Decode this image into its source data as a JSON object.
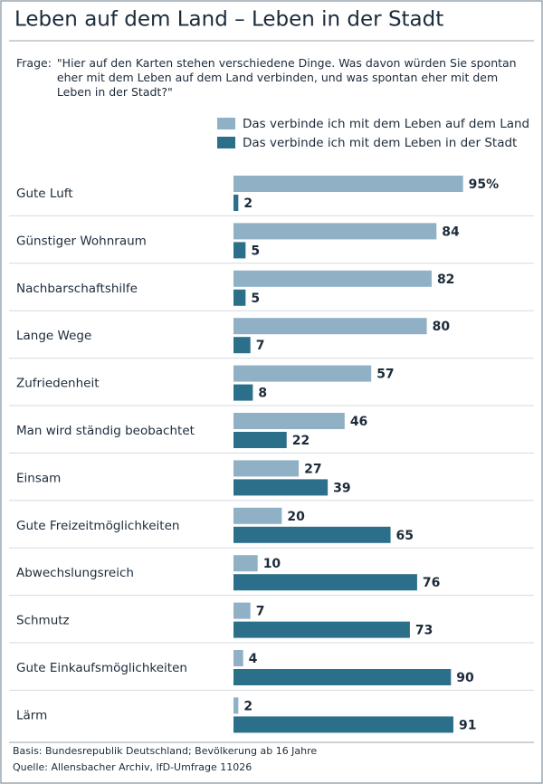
{
  "chart_data": {
    "type": "bar",
    "orientation": "horizontal",
    "title": "Leben auf dem Land – Leben in der Stadt",
    "question": {
      "label": "Frage:",
      "text": "\"Hier auf den Karten stehen verschiedene Dinge. Was davon würden Sie spontan eher mit dem Leben auf dem Land verbinden, und was spontan eher mit dem Leben in der Stadt?\""
    },
    "categories": [
      "Gute Luft",
      "Günstiger Wohnraum",
      "Nachbarschaftshilfe",
      "Lange Wege",
      "Zufriedenheit",
      "Man wird ständig beobachtet",
      "Einsam",
      "Gute Freizeitmöglichkeiten",
      "Abwechslungsreich",
      "Schmutz",
      "Gute Einkaufsmöglichkeiten",
      "Lärm"
    ],
    "series": [
      {
        "name": "Das verbinde ich mit dem Leben auf dem Land",
        "color": "#8fb0c5",
        "values": [
          95,
          84,
          82,
          80,
          57,
          46,
          27,
          20,
          10,
          7,
          4,
          2
        ],
        "value_labels": [
          "95%",
          "84",
          "82",
          "80",
          "57",
          "46",
          "27",
          "20",
          "10",
          "7",
          "4",
          "2"
        ]
      },
      {
        "name": "Das verbinde ich mit dem Leben in der Stadt",
        "color": "#2c6f8b",
        "values": [
          2,
          5,
          5,
          7,
          8,
          22,
          39,
          65,
          76,
          73,
          90,
          91
        ],
        "value_labels": [
          "2",
          "5",
          "5",
          "7",
          "8",
          "22",
          "39",
          "65",
          "76",
          "73",
          "90",
          "91"
        ]
      }
    ],
    "notes": [
      "Basis: Bundesrepublik Deutschland; Bevölkerung ab 16 Jahre",
      "Quelle: Allensbacher Archiv, IfD-Umfrage 11026"
    ]
  }
}
